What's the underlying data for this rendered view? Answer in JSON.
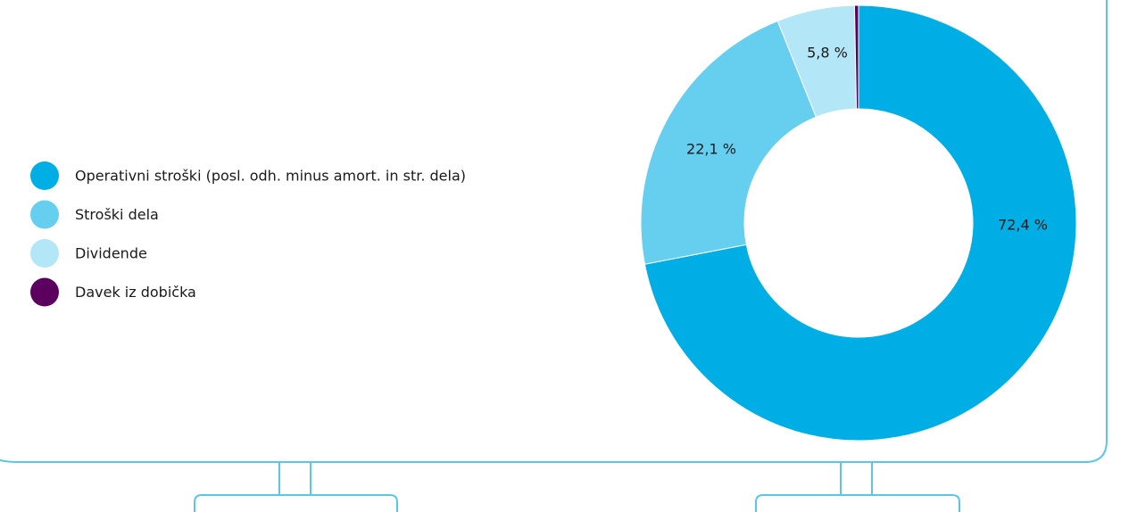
{
  "chart_data": {
    "type": "donut",
    "categories": [
      "Operativni stroški (posl. odh. minus amort. in str. dela)",
      "Stroški dela",
      "Dividende",
      "Davek iz dobička"
    ],
    "values": [
      72.4,
      22.1,
      5.8,
      0.3
    ],
    "value_labels": [
      "72,4 %",
      "22,1 %",
      "5,8 %",
      null
    ],
    "colors": [
      "#00aee6",
      "#66cff0",
      "#b3e6f7",
      "#5c0060"
    ],
    "label_colors": [
      "#ffffff",
      "#1a1a1a",
      "#1a1a1a",
      "#1a1a1a"
    ],
    "legend": "left"
  }
}
